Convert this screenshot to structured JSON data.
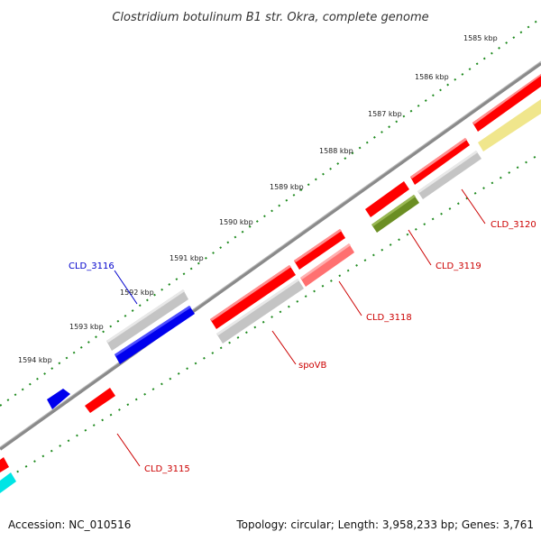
{
  "title": "Clostridium botulinum B1 str. Okra, complete genome",
  "kbp_labels": [
    "1585 kbp",
    "1586 kbp",
    "1587 kbp",
    "1588 kbp",
    "1589 kbp",
    "1590 kbp",
    "1591 kbp",
    "1592 kbp",
    "1593 kbp",
    "1594 kbp"
  ],
  "gene_labels": {
    "cld3120": "CLD_3120",
    "cld3119": "CLD_3119",
    "cld3118": "CLD_3118",
    "spovb": "spoVB",
    "cld3116": "CLD_3116",
    "cld3115": "CLD_3115"
  },
  "footer": {
    "accession": "Accession: NC_010516",
    "stats": "Topology: circular; Length: 3,958,233 bp; Genes: 3,761"
  },
  "colors": {
    "red": "#ff0000",
    "blue": "#0000ff",
    "gray": "#c4c4c4",
    "olive": "#6b8e23",
    "khaki": "#f0e68c",
    "salmon": "#ff7070",
    "cyan": "#00e5e5",
    "backbone": "#8a8a8a",
    "ruler": "#1e8a1e"
  }
}
